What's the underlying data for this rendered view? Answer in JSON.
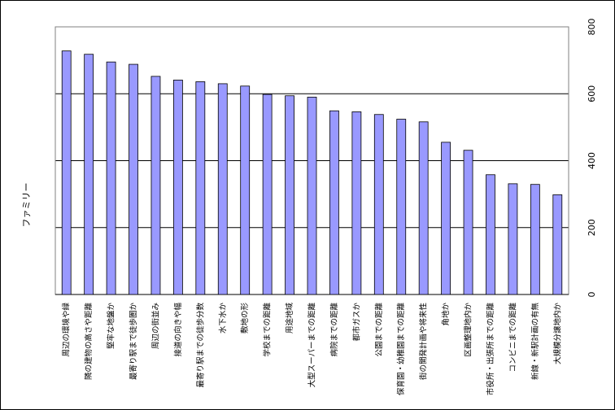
{
  "chart_data": {
    "type": "bar",
    "title": "",
    "xlabel": "",
    "ylabel": "ファミリー",
    "ylim": [
      0,
      800
    ],
    "yticks": [
      0,
      200,
      400,
      600,
      800
    ],
    "y_axis_side": "right",
    "grid": true,
    "bar_color": "#9999ff",
    "bar_edge_color": "#000000",
    "categories": [
      "周辺の環境や緑",
      "隣の建物の高さや距離",
      "堅牢な地盤か",
      "最寄り駅まで徒歩圏か",
      "周辺の街並み",
      "接道の向きや幅",
      "最寄り駅までの徒歩分数",
      "水下水か",
      "敷地の形",
      "学校までの距離",
      "用途地域",
      "大型スーパーまでの距離",
      "病院までの距離",
      "都市ガスか",
      "公園までの距離",
      "保育園・幼稚園までの距離",
      "街の開発計画や将来性",
      "角地か",
      "区画整理地内か",
      "市役所・出張所までの距離",
      "コンビニまでの距離",
      "新線・新駅計画の有無",
      "大規模分譲地内か"
    ],
    "values": [
      728,
      718,
      695,
      688,
      652,
      641,
      636,
      630,
      623,
      598,
      594,
      590,
      549,
      546,
      538,
      524,
      516,
      455,
      431,
      358,
      331,
      329,
      298
    ]
  }
}
